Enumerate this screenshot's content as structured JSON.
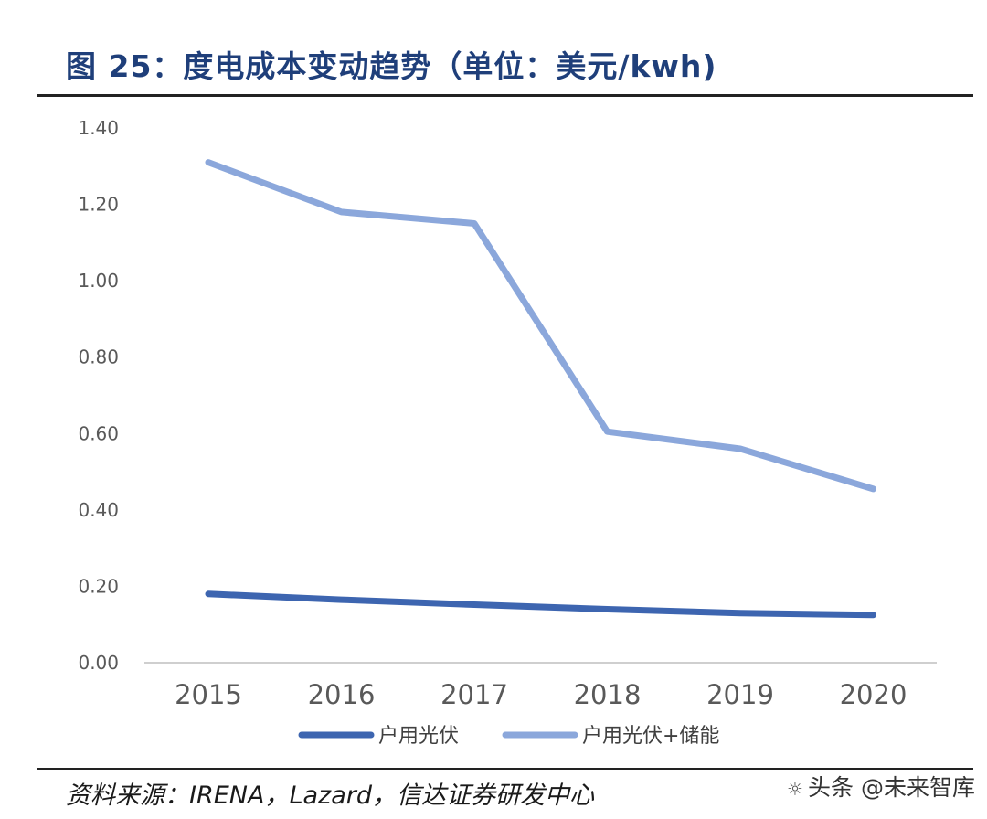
{
  "title": "图 25：度电成本变动趋势（单位：美元/kwh)",
  "source": "资料来源：IRENA，Lazard，信达证券研发中心",
  "watermark": {
    "text": "头条 @未来智库",
    "icon": "wechat-bubble-icon"
  },
  "colors": {
    "title": "#1f3f7a",
    "series_1": "#3d65b0",
    "series_2": "#8ba7db",
    "axis": "#bfbfbf",
    "tick_text": "#595959"
  },
  "chart_data": {
    "type": "line",
    "title": "度电成本变动趋势（单位：美元/kwh)",
    "xlabel": "",
    "ylabel": "",
    "categories": [
      "2015",
      "2016",
      "2017",
      "2018",
      "2019",
      "2020"
    ],
    "ylim": [
      0,
      1.4
    ],
    "yticks": [
      "0.00",
      "0.20",
      "0.40",
      "0.60",
      "0.80",
      "1.00",
      "1.20",
      "1.40"
    ],
    "grid": false,
    "legend_position": "bottom",
    "series": [
      {
        "name": "户用光伏",
        "values": [
          0.18,
          0.165,
          0.152,
          0.14,
          0.13,
          0.125
        ],
        "color": "#3d65b0"
      },
      {
        "name": "户用光伏+储能",
        "values": [
          1.31,
          1.18,
          1.15,
          0.605,
          0.56,
          0.455
        ],
        "color": "#8ba7db"
      }
    ]
  }
}
